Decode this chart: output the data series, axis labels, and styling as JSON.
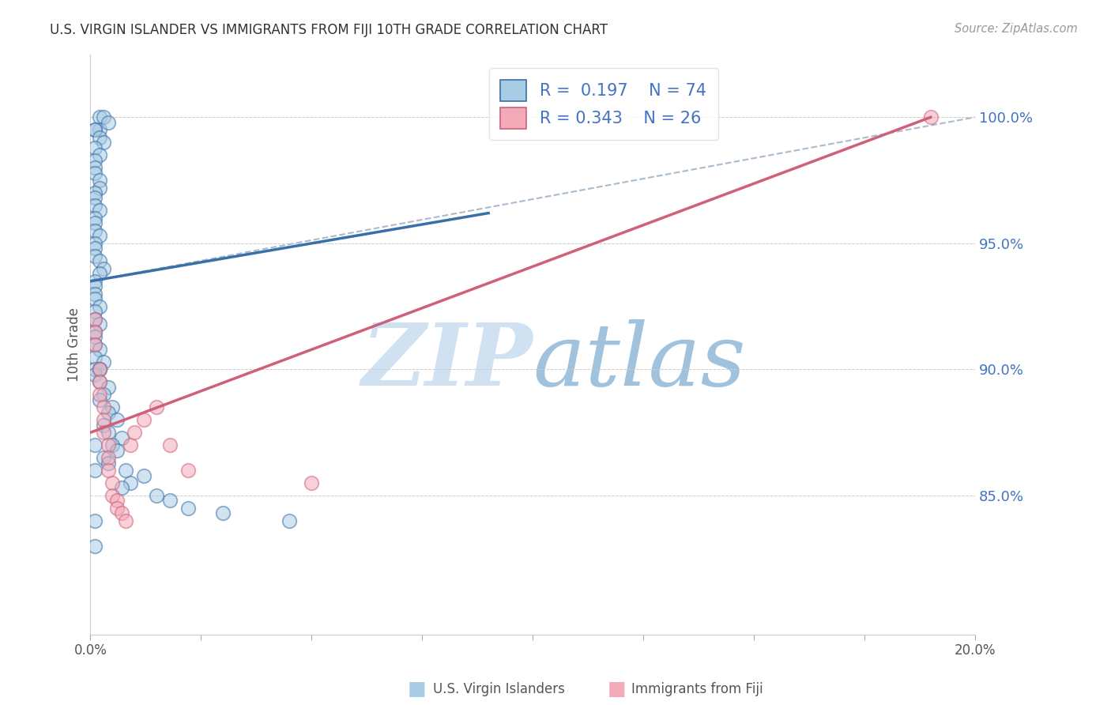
{
  "title": "U.S. VIRGIN ISLANDER VS IMMIGRANTS FROM FIJI 10TH GRADE CORRELATION CHART",
  "source": "Source: ZipAtlas.com",
  "ylabel": "10th Grade",
  "legend_blue_r": "0.197",
  "legend_blue_n": "74",
  "legend_pink_r": "0.343",
  "legend_pink_n": "26",
  "blue_color": "#a8cce4",
  "blue_line_color": "#3a6fa8",
  "pink_color": "#f2aab8",
  "pink_line_color": "#d0607a",
  "watermark_color": "#ddeeff",
  "grid_color": "#cccccc",
  "title_color": "#333333",
  "source_color": "#999999",
  "axis_label_color": "#4472c4",
  "ytick_vals": [
    0.85,
    0.9,
    0.95,
    1.0
  ],
  "ytick_labels": [
    "85.0%",
    "90.0%",
    "95.0%",
    "100.0%"
  ],
  "xlim": [
    0.0,
    0.2
  ],
  "ylim": [
    0.795,
    1.025
  ],
  "blue_x": [
    0.002,
    0.003,
    0.002,
    0.004,
    0.001,
    0.001,
    0.002,
    0.003,
    0.001,
    0.002,
    0.001,
    0.001,
    0.001,
    0.002,
    0.002,
    0.001,
    0.001,
    0.001,
    0.002,
    0.001,
    0.001,
    0.001,
    0.002,
    0.001,
    0.001,
    0.001,
    0.002,
    0.003,
    0.002,
    0.001,
    0.001,
    0.001,
    0.001,
    0.002,
    0.001,
    0.001,
    0.002,
    0.001,
    0.001,
    0.001,
    0.002,
    0.001,
    0.003,
    0.001,
    0.002,
    0.001,
    0.002,
    0.004,
    0.003,
    0.002,
    0.005,
    0.004,
    0.006,
    0.003,
    0.004,
    0.007,
    0.005,
    0.006,
    0.003,
    0.004,
    0.008,
    0.012,
    0.009,
    0.007,
    0.015,
    0.018,
    0.022,
    0.03,
    0.045,
    0.002,
    0.001,
    0.001,
    0.001,
    0.001
  ],
  "blue_y": [
    1.0,
    1.0,
    0.995,
    0.998,
    0.995,
    0.995,
    0.992,
    0.99,
    0.988,
    0.985,
    0.983,
    0.98,
    0.978,
    0.975,
    0.972,
    0.97,
    0.968,
    0.965,
    0.963,
    0.96,
    0.958,
    0.955,
    0.953,
    0.95,
    0.948,
    0.945,
    0.943,
    0.94,
    0.938,
    0.935,
    0.933,
    0.93,
    0.928,
    0.925,
    0.923,
    0.92,
    0.918,
    0.915,
    0.913,
    0.91,
    0.908,
    0.905,
    0.903,
    0.9,
    0.9,
    0.898,
    0.895,
    0.893,
    0.89,
    0.888,
    0.885,
    0.883,
    0.88,
    0.878,
    0.875,
    0.873,
    0.87,
    0.868,
    0.865,
    0.863,
    0.86,
    0.858,
    0.855,
    0.853,
    0.85,
    0.848,
    0.845,
    0.843,
    0.84,
    0.9,
    0.87,
    0.86,
    0.84,
    0.83
  ],
  "pink_x": [
    0.001,
    0.001,
    0.001,
    0.002,
    0.002,
    0.002,
    0.003,
    0.003,
    0.003,
    0.004,
    0.004,
    0.004,
    0.005,
    0.005,
    0.006,
    0.006,
    0.007,
    0.008,
    0.009,
    0.01,
    0.012,
    0.015,
    0.018,
    0.022,
    0.05,
    0.19
  ],
  "pink_y": [
    0.92,
    0.915,
    0.91,
    0.9,
    0.895,
    0.89,
    0.885,
    0.88,
    0.875,
    0.87,
    0.865,
    0.86,
    0.855,
    0.85,
    0.848,
    0.845,
    0.843,
    0.84,
    0.87,
    0.875,
    0.88,
    0.885,
    0.87,
    0.86,
    0.855,
    1.0
  ]
}
